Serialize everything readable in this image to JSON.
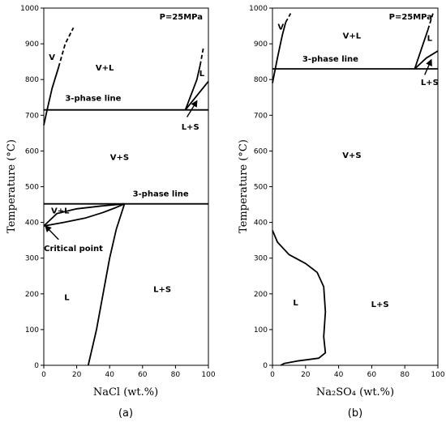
{
  "chart_data": [
    {
      "type": "line",
      "panel": "a",
      "caption": "(a)",
      "pressure_label": "P=25MPa",
      "xlabel": "NaCl (wt.%)",
      "ylabel": "Temperature (°C)",
      "xlim": [
        0,
        100
      ],
      "ylim": [
        0,
        1000
      ],
      "x_ticks": [
        "0",
        "20",
        "40",
        "60",
        "80",
        "100"
      ],
      "y_ticks": [
        "0",
        "100",
        "200",
        "300",
        "400",
        "500",
        "600",
        "700",
        "800",
        "900",
        "1000"
      ],
      "regions": [
        {
          "label": "V",
          "x": 5,
          "y": 855
        },
        {
          "label": "V+L",
          "x": 37,
          "y": 825
        },
        {
          "label": "L",
          "x": 96,
          "y": 810
        },
        {
          "label": "3-phase line",
          "x": 30,
          "y": 740
        },
        {
          "label": "L+S",
          "x": 89,
          "y": 660
        },
        {
          "label": "V+S",
          "x": 46,
          "y": 575
        },
        {
          "label": "3-phase line",
          "x": 71,
          "y": 473
        },
        {
          "label": "V+L",
          "x": 10,
          "y": 425
        },
        {
          "label": "Critical point",
          "x": 18,
          "y": 320
        },
        {
          "label": "L",
          "x": 14,
          "y": 183
        },
        {
          "label": "L+S",
          "x": 72,
          "y": 205
        }
      ],
      "series": [
        {
          "style": "solid",
          "points": [
            [
              0,
              672
            ],
            [
              2,
              715
            ],
            [
              5,
              775
            ],
            [
              9,
              835
            ]
          ]
        },
        {
          "style": "dashed",
          "points": [
            [
              9,
              835
            ],
            [
              13,
              900
            ],
            [
              18,
              945
            ]
          ]
        },
        {
          "style": "solid",
          "points": [
            [
              0,
              715
            ],
            [
              100,
              715
            ]
          ]
        },
        {
          "style": "solid",
          "points": [
            [
              0,
              452
            ],
            [
              100,
              452
            ]
          ]
        },
        {
          "style": "solid",
          "points": [
            [
              86,
              715
            ],
            [
              93,
              800
            ],
            [
              95,
              840
            ]
          ]
        },
        {
          "style": "dashed",
          "points": [
            [
              95,
              840
            ],
            [
              97,
              890
            ]
          ]
        },
        {
          "style": "solid",
          "points": [
            [
              86,
              715
            ],
            [
              100,
              795
            ]
          ]
        },
        {
          "style": "solid",
          "points": [
            [
              0,
              390
            ],
            [
              12,
              400
            ],
            [
              25,
              412
            ],
            [
              36,
              428
            ],
            [
              44,
              442
            ],
            [
              49,
              452
            ]
          ]
        },
        {
          "style": "solid",
          "points": [
            [
              0,
              390
            ],
            [
              8,
              425
            ],
            [
              20,
              438
            ],
            [
              35,
              446
            ],
            [
              49,
              452
            ]
          ]
        },
        {
          "style": "solid",
          "points": [
            [
              27,
              0
            ],
            [
              32,
              100
            ],
            [
              36,
              200
            ],
            [
              40,
              300
            ],
            [
              44,
              380
            ],
            [
              49,
              452
            ]
          ]
        }
      ],
      "annotations": [
        {
          "label": "L+S",
          "from": [
            87,
            695
          ],
          "to": [
            93,
            740
          ]
        },
        {
          "label": "Critical point",
          "from": [
            9,
            352
          ],
          "to": [
            1,
            390
          ]
        }
      ]
    },
    {
      "type": "line",
      "panel": "b",
      "caption": "(b)",
      "pressure_label": "P=25MPa",
      "xlabel": "Na₂SO₄ (wt.%)",
      "ylabel": "Temperature (°C)",
      "xlim": [
        0,
        100
      ],
      "ylim": [
        0,
        1000
      ],
      "x_ticks": [
        "0",
        "20",
        "40",
        "60",
        "80",
        "100"
      ],
      "y_ticks": [
        "0",
        "100",
        "200",
        "300",
        "400",
        "500",
        "600",
        "700",
        "800",
        "900",
        "1000"
      ],
      "regions": [
        {
          "label": "V",
          "x": 5,
          "y": 940
        },
        {
          "label": "V+L",
          "x": 48,
          "y": 915
        },
        {
          "label": "L",
          "x": 95,
          "y": 908
        },
        {
          "label": "3-phase line",
          "x": 35,
          "y": 850
        },
        {
          "label": "L+S",
          "x": 95,
          "y": 785
        },
        {
          "label": "V+S",
          "x": 48,
          "y": 580
        },
        {
          "label": "L",
          "x": 14,
          "y": 168
        },
        {
          "label": "L+S",
          "x": 65,
          "y": 163
        }
      ],
      "series": [
        {
          "style": "solid",
          "points": [
            [
              0,
              790
            ],
            [
              3,
              860
            ],
            [
              6,
              925
            ],
            [
              8,
              960
            ]
          ]
        },
        {
          "style": "dashed",
          "points": [
            [
              8,
              960
            ],
            [
              11,
              985
            ]
          ]
        },
        {
          "style": "solid",
          "points": [
            [
              0,
              830
            ],
            [
              100,
              830
            ]
          ]
        },
        {
          "style": "solid",
          "points": [
            [
              86,
              830
            ],
            [
              90,
              885
            ],
            [
              94,
              940
            ]
          ]
        },
        {
          "style": "dashed",
          "points": [
            [
              94,
              940
            ],
            [
              97,
              985
            ]
          ]
        },
        {
          "style": "solid",
          "points": [
            [
              86,
              830
            ],
            [
              93,
              860
            ],
            [
              100,
              880
            ]
          ]
        },
        {
          "style": "solid",
          "points": [
            [
              0,
              378
            ],
            [
              3,
              345
            ],
            [
              10,
              310
            ],
            [
              20,
              285
            ],
            [
              27,
              260
            ],
            [
              31,
              220
            ],
            [
              32,
              150
            ],
            [
              31,
              80
            ],
            [
              32,
              35
            ],
            [
              28,
              20
            ],
            [
              15,
              12
            ],
            [
              7,
              5
            ],
            [
              5,
              0
            ]
          ]
        }
      ],
      "annotations": [
        {
          "label": "L+S",
          "from": [
            92,
            813
          ],
          "to": [
            96,
            855
          ]
        }
      ]
    }
  ]
}
